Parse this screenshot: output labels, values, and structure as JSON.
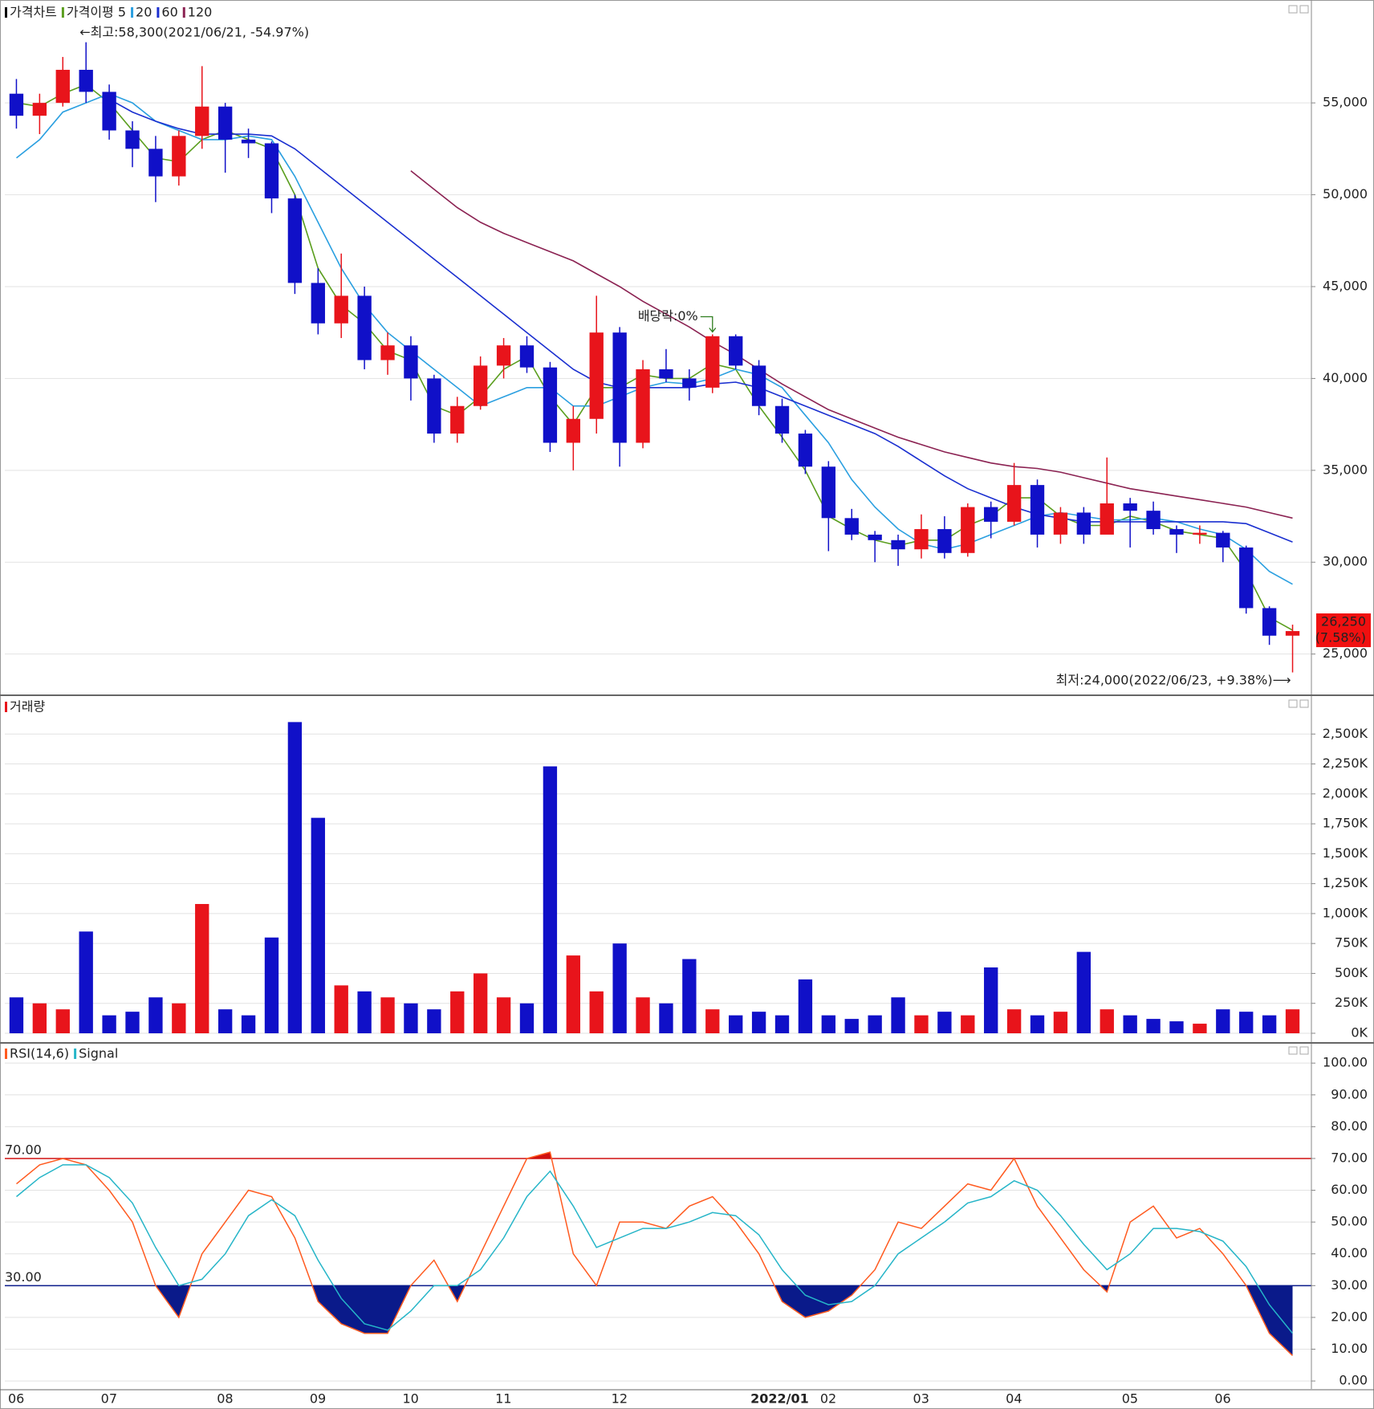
{
  "chart_data": [
    {
      "type": "candlestick",
      "title": "가격차트",
      "categories": [
        "06",
        null,
        null,
        null,
        "07",
        null,
        null,
        null,
        null,
        "08",
        null,
        null,
        null,
        "09",
        null,
        null,
        null,
        "10",
        null,
        null,
        null,
        "11",
        null,
        null,
        null,
        null,
        "12",
        null,
        null,
        null,
        null,
        null,
        "2022/01",
        null,
        null,
        "02",
        null,
        null,
        null,
        "03",
        null,
        null,
        null,
        "04",
        null,
        null,
        null,
        null,
        "05",
        null,
        null,
        null,
        "06",
        null,
        null,
        null
      ],
      "open": [
        55500,
        54300,
        55000,
        56800,
        55600,
        53500,
        52500,
        51000,
        53200,
        54800,
        53000,
        52800,
        49800,
        45200,
        43000,
        44500,
        41000,
        41800,
        40000,
        37000,
        38500,
        40700,
        41800,
        40600,
        36500,
        37800,
        42500,
        36500,
        40500,
        40000,
        39500,
        42300,
        40700,
        38500,
        37000,
        35200,
        32400,
        31500,
        31200,
        30700,
        31800,
        30500,
        33000,
        32200,
        34200,
        31500,
        32700,
        31500,
        33200,
        32800,
        31800,
        31500,
        31600,
        30800,
        27500,
        26000
      ],
      "high": [
        56300,
        55500,
        57500,
        58300,
        56000,
        54000,
        53200,
        53500,
        57000,
        55000,
        53600,
        52900,
        50000,
        46000,
        46800,
        45000,
        42500,
        42300,
        40200,
        39000,
        41200,
        42200,
        42300,
        40900,
        38500,
        44500,
        42800,
        41000,
        41600,
        40500,
        42400,
        42400,
        41000,
        38900,
        37200,
        35500,
        32900,
        31700,
        31500,
        32600,
        32500,
        33200,
        33300,
        35400,
        34500,
        33000,
        33000,
        35700,
        33500,
        33300,
        32000,
        32000,
        31700,
        30900,
        27600,
        26600
      ],
      "low": [
        53600,
        53300,
        54800,
        55000,
        53000,
        51500,
        49600,
        50500,
        52500,
        51200,
        52000,
        49000,
        44600,
        42400,
        42200,
        40500,
        40200,
        38800,
        36500,
        36500,
        38300,
        40000,
        40300,
        36000,
        35000,
        37000,
        35200,
        36200,
        39800,
        38800,
        39200,
        40500,
        38000,
        36500,
        34800,
        30600,
        31200,
        30000,
        29800,
        30200,
        30200,
        30300,
        31300,
        32000,
        30800,
        31000,
        31000,
        31800,
        30800,
        31500,
        30500,
        31000,
        30000,
        27200,
        25500,
        24000
      ],
      "close": [
        54300,
        55000,
        56800,
        55600,
        53500,
        52500,
        51000,
        53200,
        54800,
        53000,
        52800,
        49800,
        45200,
        43000,
        44500,
        41000,
        41800,
        40000,
        37000,
        38500,
        40700,
        41800,
        40600,
        36500,
        37800,
        42500,
        36500,
        40500,
        40000,
        39500,
        42300,
        40700,
        38500,
        37000,
        35200,
        32400,
        31500,
        31200,
        30700,
        31800,
        30500,
        33000,
        32200,
        34200,
        31500,
        32700,
        31500,
        33200,
        32800,
        31800,
        31500,
        31600,
        30800,
        27500,
        26000,
        26250
      ],
      "up_color": "#e8141b",
      "down_color": "#1010c8",
      "close_label": "26,250",
      "change_label": "(7.58%)",
      "series": [
        {
          "name": "가격이평 5",
          "color": "#5a9e1e",
          "values": [
            55000,
            54800,
            55500,
            56000,
            55000,
            53500,
            52000,
            51800,
            53000,
            53500,
            53000,
            52500,
            50000,
            46000,
            44000,
            43000,
            41500,
            41000,
            38500,
            38000,
            39000,
            40500,
            41200,
            39000,
            37500,
            39500,
            39500,
            40200,
            40000,
            40000,
            40800,
            40500,
            38500,
            36800,
            35000,
            32500,
            31800,
            31200,
            30900,
            31200,
            31200,
            32000,
            32500,
            33500,
            33500,
            32500,
            32000,
            32000,
            32500,
            32200,
            31700,
            31500,
            31300,
            29500,
            27000,
            26300
          ]
        },
        {
          "name": "20",
          "color": "#2a9fe0",
          "values": [
            52000,
            53000,
            54500,
            55000,
            55500,
            55000,
            54000,
            53500,
            53000,
            53000,
            53200,
            53000,
            51000,
            48500,
            46000,
            44000,
            42500,
            41500,
            40500,
            39500,
            38500,
            39000,
            39500,
            39500,
            38500,
            38500,
            39000,
            39500,
            39800,
            39700,
            40000,
            40500,
            40200,
            39500,
            38000,
            36500,
            34500,
            33000,
            31800,
            31000,
            30700,
            31000,
            31500,
            32000,
            32500,
            32700,
            32500,
            32300,
            32300,
            32400,
            32200,
            31800,
            31500,
            30700,
            29500,
            28800
          ]
        },
        {
          "name": "60",
          "color": "#1a2fd0",
          "values": [
            null,
            null,
            null,
            null,
            55200,
            54500,
            54000,
            53600,
            53300,
            53300,
            53300,
            53200,
            52500,
            51500,
            50500,
            49500,
            48500,
            47500,
            46500,
            45500,
            44500,
            43500,
            42500,
            41500,
            40500,
            39800,
            39500,
            39500,
            39500,
            39500,
            39700,
            39800,
            39500,
            39000,
            38500,
            38000,
            37500,
            37000,
            36300,
            35500,
            34700,
            34000,
            33500,
            33000,
            32600,
            32400,
            32200,
            32200,
            32200,
            32200,
            32200,
            32200,
            32200,
            32100,
            31600,
            31100
          ]
        },
        {
          "name": "120",
          "color": "#8b2252",
          "values": [
            null,
            null,
            null,
            null,
            null,
            null,
            null,
            null,
            null,
            null,
            null,
            null,
            null,
            null,
            null,
            null,
            null,
            51300,
            50300,
            49300,
            48500,
            47900,
            47400,
            46900,
            46400,
            45700,
            45000,
            44200,
            43500,
            42800,
            42000,
            41300,
            40500,
            39700,
            39000,
            38300,
            37800,
            37300,
            36800,
            36400,
            36000,
            35700,
            35400,
            35200,
            35100,
            34900,
            34600,
            34300,
            34000,
            33800,
            33600,
            33400,
            33200,
            33000,
            32700,
            32400
          ]
        }
      ],
      "annotations": {
        "high": "←최고:58,300(2021/06/21, -54.97%)",
        "low": "최저:24,000(2022/06/23, +9.38%)⟶",
        "dividend": "배당락:0%"
      },
      "ylim": [
        22800,
        60600
      ],
      "yticks": [
        {
          "value": 25000,
          "label": "25,000"
        },
        {
          "value": 30000,
          "label": "30,000"
        },
        {
          "value": 35000,
          "label": "35,000"
        },
        {
          "value": 40000,
          "label": "40,000"
        },
        {
          "value": 45000,
          "label": "45,000"
        },
        {
          "value": 50000,
          "label": "50,000"
        },
        {
          "value": 55000,
          "label": "55,000"
        }
      ]
    },
    {
      "type": "bar",
      "title": "거래량",
      "values": [
        300,
        250,
        200,
        850,
        150,
        180,
        300,
        250,
        1080,
        200,
        150,
        800,
        2600,
        1800,
        400,
        350,
        300,
        250,
        200,
        350,
        500,
        300,
        250,
        2230,
        650,
        350,
        750,
        300,
        250,
        620,
        200,
        150,
        180,
        150,
        450,
        150,
        120,
        150,
        300,
        150,
        180,
        150,
        550,
        200,
        150,
        180,
        680,
        200,
        150,
        120,
        100,
        80,
        200,
        180,
        150,
        200
      ],
      "ylim": [
        0,
        2730
      ],
      "yticks": [
        {
          "value": 0,
          "label": "0K"
        },
        {
          "value": 250,
          "label": "250K"
        },
        {
          "value": 500,
          "label": "500K"
        },
        {
          "value": 750,
          "label": "750K"
        },
        {
          "value": 1000,
          "label": "1,000K"
        },
        {
          "value": 1250,
          "label": "1,250K"
        },
        {
          "value": 1500,
          "label": "1,500K"
        },
        {
          "value": 1750,
          "label": "1,750K"
        },
        {
          "value": 2000,
          "label": "2,000K"
        },
        {
          "value": 2250,
          "label": "2,250K"
        },
        {
          "value": 2500,
          "label": "2,500K"
        }
      ]
    },
    {
      "type": "line",
      "series": [
        {
          "name": "RSI(14,6)",
          "color": "#ff5a1f",
          "values": [
            62,
            68,
            70,
            68,
            60,
            50,
            30,
            20,
            40,
            50,
            60,
            58,
            45,
            25,
            18,
            15,
            15,
            30,
            38,
            25,
            40,
            55,
            70,
            72,
            40,
            30,
            50,
            50,
            48,
            55,
            58,
            50,
            40,
            25,
            20,
            22,
            27,
            35,
            50,
            48,
            55,
            62,
            60,
            70,
            55,
            45,
            35,
            28,
            50,
            55,
            45,
            48,
            40,
            30,
            15,
            8
          ]
        },
        {
          "name": "Signal",
          "color": "#26b5c8",
          "values": [
            58,
            64,
            68,
            68,
            64,
            56,
            42,
            30,
            32,
            40,
            52,
            57,
            52,
            38,
            26,
            18,
            16,
            22,
            30,
            30,
            35,
            45,
            58,
            66,
            55,
            42,
            45,
            48,
            48,
            50,
            53,
            52,
            46,
            35,
            27,
            24,
            25,
            30,
            40,
            45,
            50,
            56,
            58,
            63,
            60,
            52,
            43,
            35,
            40,
            48,
            48,
            47,
            44,
            36,
            24,
            15
          ]
        }
      ],
      "reference_lines": [
        {
          "value": 70,
          "label": "70.00",
          "color": "#d01010"
        },
        {
          "value": 30,
          "label": "30.00",
          "color": "#0a1a8a"
        }
      ],
      "ylim": [
        -2.5,
        105.6
      ],
      "yticks": [
        {
          "value": 0,
          "label": "0.00"
        },
        {
          "value": 10,
          "label": "10.00"
        },
        {
          "value": 20,
          "label": "20.00"
        },
        {
          "value": 30,
          "label": "30.00"
        },
        {
          "value": 40,
          "label": "40.00"
        },
        {
          "value": 50,
          "label": "50.00"
        },
        {
          "value": 60,
          "label": "60.00"
        },
        {
          "value": 70,
          "label": "70.00"
        },
        {
          "value": 80,
          "label": "80.00"
        },
        {
          "value": 90,
          "label": "90.00"
        },
        {
          "value": 100,
          "label": "100.00"
        }
      ]
    }
  ]
}
